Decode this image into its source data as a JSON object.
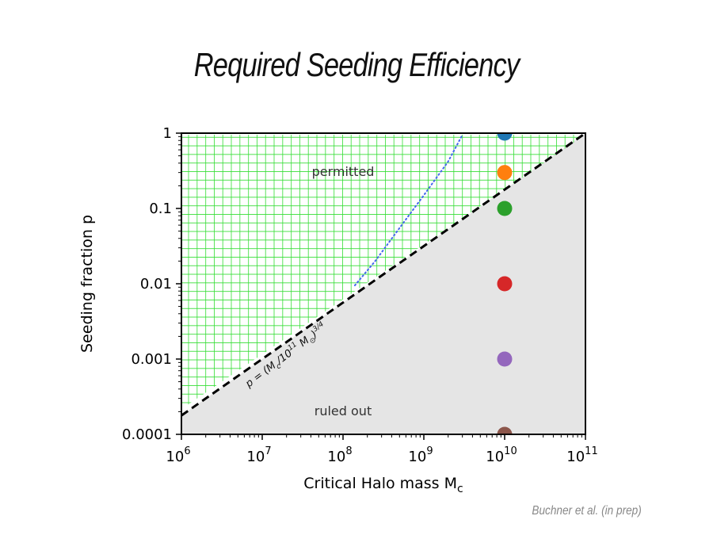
{
  "slide": {
    "title": "Required Seeding Efficiency",
    "credit": "Buchner et al. (in prep)"
  },
  "chart_data": {
    "type": "scatter",
    "xscale": "log",
    "yscale": "log",
    "xlim": [
      1000000,
      100000000000
    ],
    "ylim": [
      0.0001,
      1
    ],
    "xlabel": "Critical Halo mass M",
    "xlabel_sub": "c",
    "ylabel": "Seeding fraction p",
    "x_ticks": [
      {
        "value": 1000000,
        "base": "10",
        "exp": "6"
      },
      {
        "value": 10000000,
        "base": "10",
        "exp": "7"
      },
      {
        "value": 100000000,
        "base": "10",
        "exp": "8"
      },
      {
        "value": 1000000000,
        "base": "10",
        "exp": "9"
      },
      {
        "value": 10000000000,
        "base": "10",
        "exp": "10"
      },
      {
        "value": 100000000000,
        "base": "10",
        "exp": "11"
      }
    ],
    "y_ticks": [
      {
        "value": 1,
        "label": "1"
      },
      {
        "value": 0.1,
        "label": "0.1"
      },
      {
        "value": 0.01,
        "label": "0.01"
      },
      {
        "value": 0.001,
        "label": "0.001"
      },
      {
        "value": 0.0001,
        "label": "0.0001"
      }
    ],
    "regions": {
      "permitted": {
        "label": "permitted",
        "fill": "#ffffff",
        "hatch_color": "#33dd33"
      },
      "ruled_out": {
        "label": "ruled out",
        "fill": "#e5e5e5"
      }
    },
    "boundary_line": {
      "label": "p = (M_c/10^11 M_sun)^3/4",
      "style": "dashed",
      "color": "#000000",
      "x": [
        1000000,
        100000000000
      ],
      "y": [
        0.000178,
        1
      ]
    },
    "dotted_curve": {
      "color": "#4466ee",
      "x": [
        140000000,
        250000000,
        500000000,
        1000000000,
        2000000000,
        3000000000
      ],
      "y": [
        0.0095,
        0.02,
        0.055,
        0.15,
        0.42,
        0.95
      ]
    },
    "points": [
      {
        "x": 10000000000,
        "y": 1,
        "color": "#1f77b4"
      },
      {
        "x": 10000000000,
        "y": 0.3,
        "color": "#ff7f0e"
      },
      {
        "x": 10000000000,
        "y": 0.1,
        "color": "#2ca02c"
      },
      {
        "x": 10000000000,
        "y": 0.01,
        "color": "#d62728"
      },
      {
        "x": 10000000000,
        "y": 0.001,
        "color": "#9467bd"
      },
      {
        "x": 10000000000,
        "y": 0.0001,
        "color": "#8c564b"
      }
    ]
  }
}
